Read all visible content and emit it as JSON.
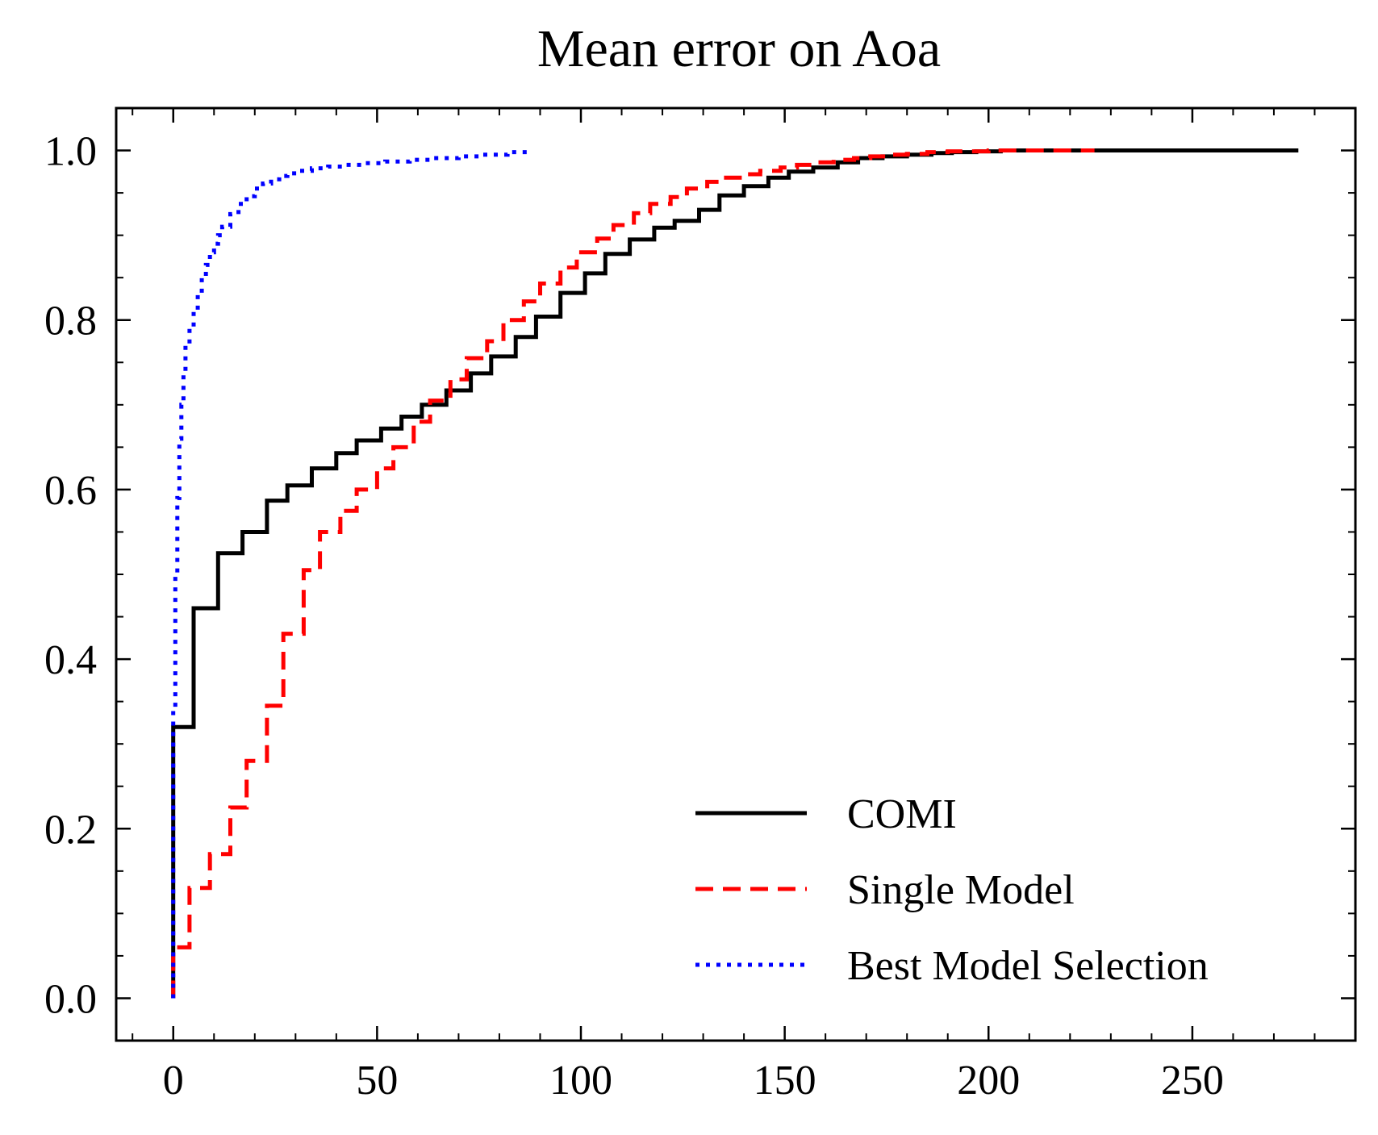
{
  "chart_data": {
    "type": "line",
    "title": "Mean error on Aoa",
    "xlabel": "",
    "ylabel": "",
    "xlim": [
      -14,
      290
    ],
    "ylim": [
      -0.05,
      1.05
    ],
    "xticks": [
      0,
      50,
      100,
      150,
      200,
      250
    ],
    "xtick_labels": [
      "0",
      "50",
      "100",
      "150",
      "200",
      "250"
    ],
    "yticks": [
      0.0,
      0.2,
      0.4,
      0.6,
      0.8,
      1.0
    ],
    "ytick_labels": [
      "0.0",
      "0.2",
      "0.4",
      "0.6",
      "0.8",
      "1.0"
    ],
    "grid": false,
    "legend_position": "lower-right",
    "series": [
      {
        "name": "COMI",
        "color": "#000000",
        "style": "solid",
        "step": true,
        "x": [
          0,
          0,
          5,
          11,
          17,
          23,
          28,
          34,
          40,
          45,
          51,
          56,
          61,
          67,
          73,
          78,
          84,
          89,
          95,
          101,
          106,
          112,
          118,
          123,
          129,
          134,
          140,
          146,
          151,
          157,
          163,
          168,
          174,
          180,
          186,
          191,
          197,
          203,
          208,
          276
        ],
        "y": [
          0.0,
          0.32,
          0.46,
          0.525,
          0.55,
          0.587,
          0.605,
          0.625,
          0.643,
          0.658,
          0.672,
          0.686,
          0.7,
          0.717,
          0.737,
          0.757,
          0.78,
          0.804,
          0.832,
          0.855,
          0.878,
          0.895,
          0.909,
          0.917,
          0.93,
          0.947,
          0.958,
          0.968,
          0.975,
          0.98,
          0.986,
          0.991,
          0.993,
          0.995,
          0.997,
          0.998,
          0.999,
          1.0,
          1.0,
          1.0
        ]
      },
      {
        "name": "Single Model",
        "color": "#ff0000",
        "style": "dashed",
        "step": true,
        "x": [
          0,
          0,
          4,
          9,
          14,
          18,
          23,
          27,
          32,
          36,
          41,
          45,
          50,
          54,
          59,
          63,
          68,
          72,
          77,
          81,
          86,
          90,
          95,
          99,
          104,
          108,
          113,
          117,
          122,
          126,
          131,
          135,
          140,
          144,
          149,
          153,
          158,
          162,
          167,
          171,
          176,
          180,
          185,
          190,
          200,
          210,
          226
        ],
        "y": [
          0.0,
          0.06,
          0.13,
          0.17,
          0.225,
          0.28,
          0.345,
          0.43,
          0.505,
          0.55,
          0.575,
          0.6,
          0.625,
          0.65,
          0.68,
          0.705,
          0.73,
          0.755,
          0.775,
          0.8,
          0.822,
          0.843,
          0.862,
          0.88,
          0.896,
          0.912,
          0.926,
          0.937,
          0.945,
          0.955,
          0.963,
          0.968,
          0.972,
          0.976,
          0.98,
          0.983,
          0.986,
          0.989,
          0.991,
          0.993,
          0.995,
          0.996,
          0.998,
          0.999,
          1.0,
          1.0,
          1.0
        ]
      },
      {
        "name": "Best Model Selection",
        "color": "#0000ff",
        "style": "dotted",
        "step": true,
        "x": [
          0,
          0,
          0.5,
          1,
          1.5,
          2,
          2.5,
          3,
          4,
          5,
          6,
          7,
          8,
          9,
          10,
          11,
          12,
          14,
          16,
          18,
          20,
          22,
          24,
          26,
          28,
          31,
          34,
          38,
          42,
          47,
          52,
          58,
          64,
          70,
          76,
          82,
          87
        ],
        "y": [
          0.0,
          0.34,
          0.5,
          0.59,
          0.66,
          0.7,
          0.74,
          0.77,
          0.79,
          0.81,
          0.83,
          0.85,
          0.865,
          0.88,
          0.89,
          0.9,
          0.91,
          0.925,
          0.937,
          0.946,
          0.955,
          0.961,
          0.966,
          0.97,
          0.973,
          0.976,
          0.979,
          0.981,
          0.983,
          0.985,
          0.987,
          0.989,
          0.991,
          0.993,
          0.995,
          0.998,
          1.0
        ]
      }
    ]
  }
}
